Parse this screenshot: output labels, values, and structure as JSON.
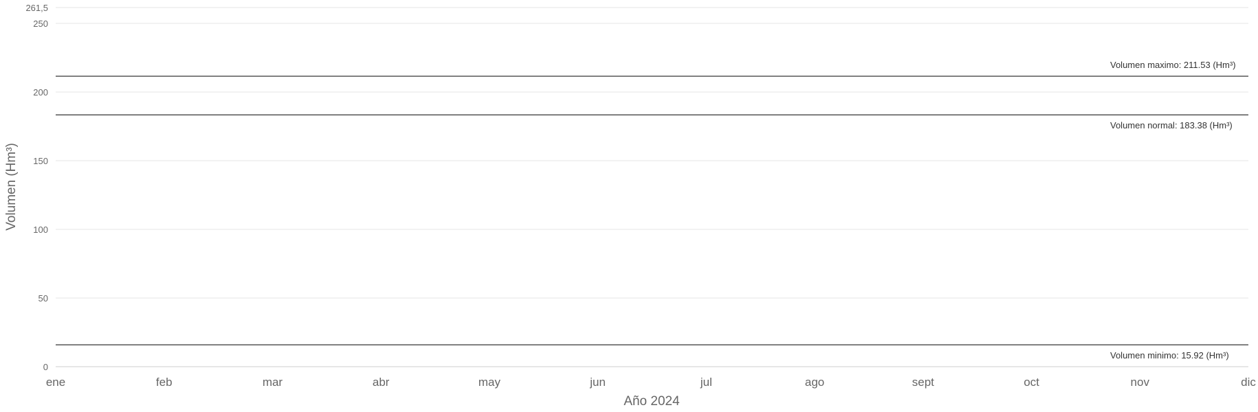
{
  "chart_data": {
    "type": "line",
    "title": "",
    "xlabel": "Año 2024",
    "ylabel": "Volumen (Hm³)",
    "categories": [
      "ene",
      "feb",
      "mar",
      "abr",
      "may",
      "jun",
      "jul",
      "ago",
      "sept",
      "oct",
      "nov",
      "dic"
    ],
    "yticks": [
      {
        "value": 0,
        "label": "0"
      },
      {
        "value": 50,
        "label": "50"
      },
      {
        "value": 100,
        "label": "100"
      },
      {
        "value": 150,
        "label": "150"
      },
      {
        "value": 200,
        "label": "200"
      },
      {
        "value": 250,
        "label": "250"
      },
      {
        "value": 261.5,
        "label": "261,5"
      }
    ],
    "ylim": [
      0,
      261.5
    ],
    "grid": true,
    "series": [],
    "reference_lines": [
      {
        "value": 211.53,
        "label": "Volumen maximo: 211.53 (Hm³)",
        "label_position": "above"
      },
      {
        "value": 183.38,
        "label": "Volumen normal: 183.38 (Hm³)",
        "label_position": "below"
      },
      {
        "value": 15.92,
        "label": "Volumen minimo: 15.92 (Hm³)",
        "label_position": "below"
      }
    ],
    "colors": {
      "grid": "#e6e6e6",
      "axis": "#cccccc",
      "reference": "#000000"
    }
  }
}
